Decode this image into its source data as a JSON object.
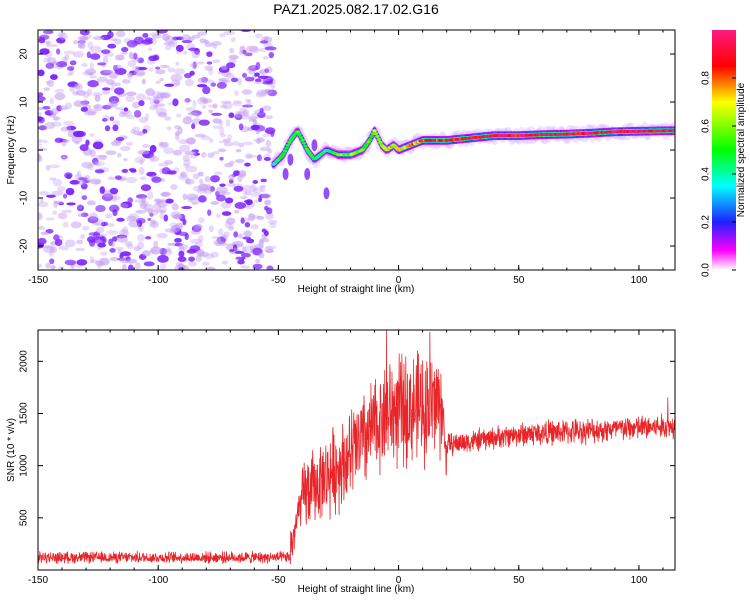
{
  "title": "PAZ1.2025.082.17.02.G16",
  "chart_data": [
    {
      "type": "heatmap",
      "xlabel": "Height of straight line (km)",
      "ylabel": "Frequency (Hz)",
      "xlim": [
        -150,
        115
      ],
      "ylim": [
        -25,
        25
      ],
      "xticks": [
        -150,
        -100,
        -50,
        0,
        50,
        100
      ],
      "yticks": [
        -20,
        -10,
        0,
        10,
        20
      ],
      "colorbar": {
        "label": "Normalized spectral amplitude",
        "range": [
          0.0,
          1.0
        ],
        "ticks": [
          0.0,
          0.2,
          0.4,
          0.6,
          0.8
        ],
        "colormap": [
          "#ff1493",
          "#ff0000",
          "#ffff00",
          "#00ff00",
          "#00ffff",
          "#0000ff",
          "#ff00ff",
          "#ffffff"
        ]
      },
      "noise_region": {
        "x": [
          -150,
          -52
        ],
        "y": [
          -25,
          25
        ],
        "amplitude": [
          0.0,
          0.15
        ]
      },
      "ridge": {
        "x": [
          -52,
          -48,
          -45,
          -42,
          -38,
          -35,
          -30,
          -25,
          -20,
          -15,
          -12,
          -10,
          -7,
          -5,
          -2,
          0,
          5,
          10,
          20,
          30,
          40,
          50,
          60,
          70,
          80,
          90,
          100,
          110,
          115
        ],
        "y": [
          -3,
          -1,
          2,
          4,
          0,
          -2,
          0,
          -1,
          -1,
          0,
          2,
          4,
          1,
          0,
          1,
          0,
          1,
          2,
          2,
          2.5,
          3,
          3,
          3.2,
          3.3,
          3.5,
          3.8,
          3.9,
          4,
          4
        ],
        "amplitude": [
          0.4,
          0.5,
          0.5,
          0.55,
          0.5,
          0.45,
          0.4,
          0.55,
          0.6,
          0.55,
          0.5,
          0.6,
          0.6,
          0.65,
          0.7,
          0.7,
          0.75,
          0.85,
          0.9,
          0.95,
          0.95,
          0.9,
          0.95,
          0.95,
          0.9,
          0.95,
          0.95,
          0.95,
          0.9
        ]
      }
    },
    {
      "type": "line",
      "xlabel": "Height of straight line (km)",
      "ylabel": "SNR (10 * v/v)",
      "xlim": [
        -150,
        115
      ],
      "ylim": [
        0,
        2300
      ],
      "xticks": [
        -150,
        -100,
        -50,
        0,
        50,
        100
      ],
      "yticks": [
        500,
        1000,
        1500,
        2000
      ],
      "color": "#e8262a",
      "segments": [
        {
          "x": [
            -150,
            -45
          ],
          "mean": 120,
          "spread": 90
        },
        {
          "x": [
            -45,
            -40
          ],
          "mean": [
            200,
            700
          ],
          "spread": 350
        },
        {
          "x": [
            -40,
            -30
          ],
          "mean": [
            700,
            900
          ],
          "spread": 600
        },
        {
          "x": [
            -30,
            -20
          ],
          "mean": [
            900,
            1100
          ],
          "spread": 700
        },
        {
          "x": [
            -20,
            -5
          ],
          "mean": [
            1100,
            1500
          ],
          "spread": 800
        },
        {
          "x": [
            -5,
            18
          ],
          "mean": [
            1500,
            1600
          ],
          "spread": 900
        },
        {
          "x": [
            18,
            20
          ],
          "mean": [
            1600,
            1000
          ],
          "spread": 400
        },
        {
          "x": [
            20,
            50
          ],
          "mean": [
            1200,
            1300
          ],
          "spread": 180
        },
        {
          "x": [
            50,
            115
          ],
          "mean": [
            1300,
            1380
          ],
          "spread": 200
        }
      ],
      "peaks": [
        {
          "x": -5,
          "y": 2300
        },
        {
          "x": 13,
          "y": 2280
        },
        {
          "x": 112,
          "y": 1650
        }
      ]
    }
  ]
}
